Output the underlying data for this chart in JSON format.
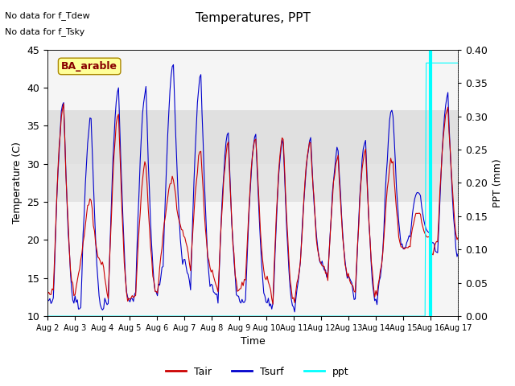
{
  "title": "Temperatures, PPT",
  "xlabel": "Time",
  "ylabel_left": "Temperature (C)",
  "ylabel_right": "PPT (mm)",
  "ylim_left": [
    10,
    45
  ],
  "ylim_right": [
    0.0,
    0.4
  ],
  "annotation_text1": "No data for f_Tdew",
  "annotation_text2": "No data for f_Tsky",
  "box_text": "BA_arable",
  "legend_labels": [
    "Tair",
    "Tsurf",
    "ppt"
  ],
  "legend_colors": [
    "red",
    "blue",
    "cyan"
  ],
  "shaded_band_lo": 25,
  "shaded_band_hi": 37,
  "background_color": "#ffffff",
  "plot_bg_color": "#f5f5f5",
  "tair_color": "#cc0000",
  "tsurf_color": "#0000cc",
  "ppt_color": "cyan",
  "vline_day": 16.0,
  "figsize": [
    6.4,
    4.8
  ],
  "dpi": 100
}
